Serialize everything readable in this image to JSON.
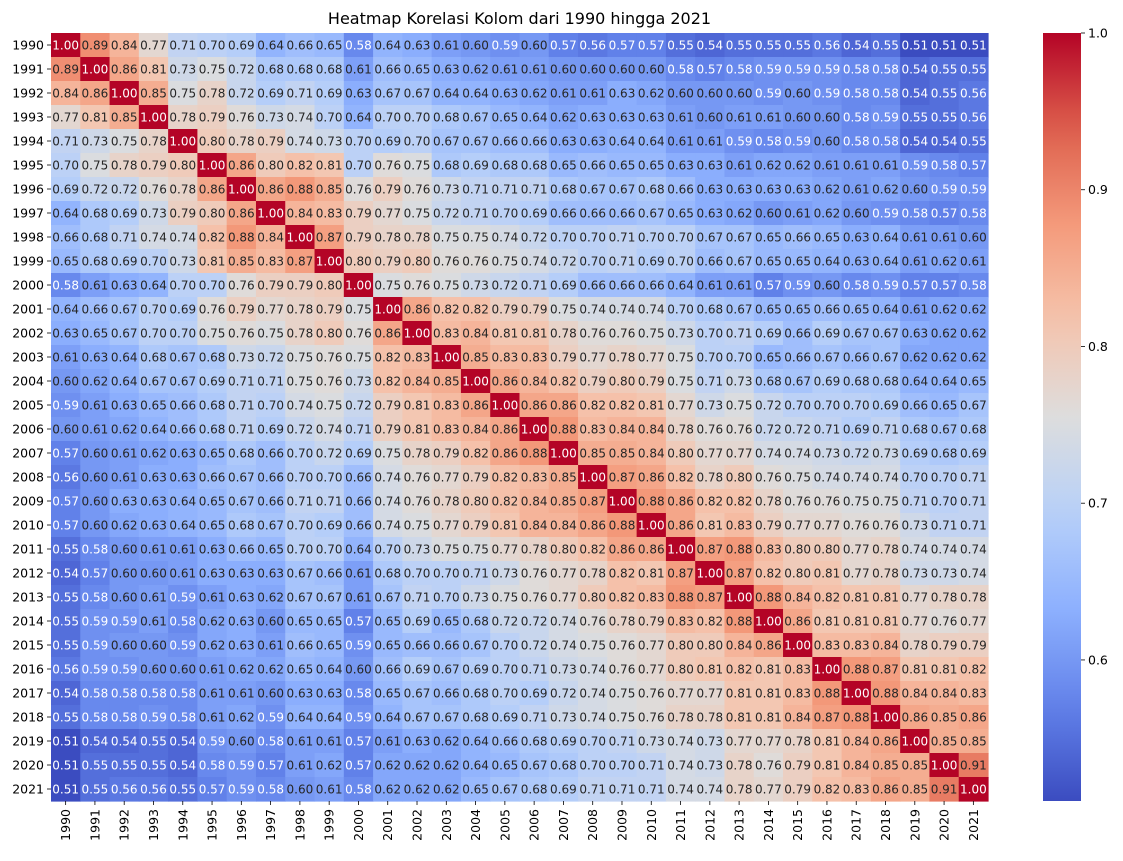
{
  "chart_data": {
    "type": "heatmap",
    "title": "Heatmap Korelasi Kolom dari 1990 hingga 2021",
    "xlabel": "",
    "ylabel": "",
    "categories": [
      "1990",
      "1991",
      "1992",
      "1993",
      "1994",
      "1995",
      "1996",
      "1997",
      "1998",
      "1999",
      "2000",
      "2001",
      "2002",
      "2003",
      "2004",
      "2005",
      "2006",
      "2007",
      "2008",
      "2009",
      "2010",
      "2011",
      "2012",
      "2013",
      "2014",
      "2015",
      "2016",
      "2017",
      "2018",
      "2019",
      "2020",
      "2021"
    ],
    "values": [
      [
        1.0,
        0.89,
        0.84,
        0.77,
        0.71,
        0.7,
        0.69,
        0.64,
        0.66,
        0.65,
        0.58,
        0.64,
        0.63,
        0.61,
        0.6,
        0.59,
        0.6,
        0.57,
        0.56,
        0.57,
        0.57,
        0.55,
        0.54,
        0.55,
        0.55,
        0.55,
        0.56,
        0.54,
        0.55,
        0.51,
        0.51,
        0.51
      ],
      [
        0.89,
        1.0,
        0.86,
        0.81,
        0.73,
        0.75,
        0.72,
        0.68,
        0.68,
        0.68,
        0.61,
        0.66,
        0.65,
        0.63,
        0.62,
        0.61,
        0.61,
        0.6,
        0.6,
        0.6,
        0.6,
        0.58,
        0.57,
        0.58,
        0.59,
        0.59,
        0.59,
        0.58,
        0.58,
        0.54,
        0.55,
        0.55
      ],
      [
        0.84,
        0.86,
        1.0,
        0.85,
        0.75,
        0.78,
        0.72,
        0.69,
        0.71,
        0.69,
        0.63,
        0.67,
        0.67,
        0.64,
        0.64,
        0.63,
        0.62,
        0.61,
        0.61,
        0.63,
        0.62,
        0.6,
        0.6,
        0.6,
        0.59,
        0.6,
        0.59,
        0.58,
        0.58,
        0.54,
        0.55,
        0.56
      ],
      [
        0.77,
        0.81,
        0.85,
        1.0,
        0.78,
        0.79,
        0.76,
        0.73,
        0.74,
        0.7,
        0.64,
        0.7,
        0.7,
        0.68,
        0.67,
        0.65,
        0.64,
        0.62,
        0.63,
        0.63,
        0.63,
        0.61,
        0.6,
        0.61,
        0.61,
        0.6,
        0.6,
        0.58,
        0.59,
        0.55,
        0.55,
        0.56
      ],
      [
        0.71,
        0.73,
        0.75,
        0.78,
        1.0,
        0.8,
        0.78,
        0.79,
        0.74,
        0.73,
        0.7,
        0.69,
        0.7,
        0.67,
        0.67,
        0.66,
        0.66,
        0.63,
        0.63,
        0.64,
        0.64,
        0.61,
        0.61,
        0.59,
        0.58,
        0.59,
        0.6,
        0.58,
        0.58,
        0.54,
        0.54,
        0.55
      ],
      [
        0.7,
        0.75,
        0.78,
        0.79,
        0.8,
        1.0,
        0.86,
        0.8,
        0.82,
        0.81,
        0.7,
        0.76,
        0.75,
        0.68,
        0.69,
        0.68,
        0.68,
        0.65,
        0.66,
        0.65,
        0.65,
        0.63,
        0.63,
        0.61,
        0.62,
        0.62,
        0.61,
        0.61,
        0.61,
        0.59,
        0.58,
        0.57
      ],
      [
        0.69,
        0.72,
        0.72,
        0.76,
        0.78,
        0.86,
        1.0,
        0.86,
        0.88,
        0.85,
        0.76,
        0.79,
        0.76,
        0.73,
        0.71,
        0.71,
        0.71,
        0.68,
        0.67,
        0.67,
        0.68,
        0.66,
        0.63,
        0.63,
        0.63,
        0.63,
        0.62,
        0.61,
        0.62,
        0.6,
        0.59,
        0.59
      ],
      [
        0.64,
        0.68,
        0.69,
        0.73,
        0.79,
        0.8,
        0.86,
        1.0,
        0.84,
        0.83,
        0.79,
        0.77,
        0.75,
        0.72,
        0.71,
        0.7,
        0.69,
        0.66,
        0.66,
        0.66,
        0.67,
        0.65,
        0.63,
        0.62,
        0.6,
        0.61,
        0.62,
        0.6,
        0.59,
        0.58,
        0.57,
        0.58
      ],
      [
        0.66,
        0.68,
        0.71,
        0.74,
        0.74,
        0.82,
        0.88,
        0.84,
        1.0,
        0.87,
        0.79,
        0.78,
        0.78,
        0.75,
        0.75,
        0.74,
        0.72,
        0.7,
        0.7,
        0.71,
        0.7,
        0.7,
        0.67,
        0.67,
        0.65,
        0.66,
        0.65,
        0.63,
        0.64,
        0.61,
        0.61,
        0.6
      ],
      [
        0.65,
        0.68,
        0.69,
        0.7,
        0.73,
        0.81,
        0.85,
        0.83,
        0.87,
        1.0,
        0.8,
        0.79,
        0.8,
        0.76,
        0.76,
        0.75,
        0.74,
        0.72,
        0.7,
        0.71,
        0.69,
        0.7,
        0.66,
        0.67,
        0.65,
        0.65,
        0.64,
        0.63,
        0.64,
        0.61,
        0.62,
        0.61
      ],
      [
        0.58,
        0.61,
        0.63,
        0.64,
        0.7,
        0.7,
        0.76,
        0.79,
        0.79,
        0.8,
        1.0,
        0.75,
        0.76,
        0.75,
        0.73,
        0.72,
        0.71,
        0.69,
        0.66,
        0.66,
        0.66,
        0.64,
        0.61,
        0.61,
        0.57,
        0.59,
        0.6,
        0.58,
        0.59,
        0.57,
        0.57,
        0.58
      ],
      [
        0.64,
        0.66,
        0.67,
        0.7,
        0.69,
        0.76,
        0.79,
        0.77,
        0.78,
        0.79,
        0.75,
        1.0,
        0.86,
        0.82,
        0.82,
        0.79,
        0.79,
        0.75,
        0.74,
        0.74,
        0.74,
        0.7,
        0.68,
        0.67,
        0.65,
        0.65,
        0.66,
        0.65,
        0.64,
        0.61,
        0.62,
        0.62
      ],
      [
        0.63,
        0.65,
        0.67,
        0.7,
        0.7,
        0.75,
        0.76,
        0.75,
        0.78,
        0.8,
        0.76,
        0.86,
        1.0,
        0.83,
        0.84,
        0.81,
        0.81,
        0.78,
        0.76,
        0.76,
        0.75,
        0.73,
        0.7,
        0.71,
        0.69,
        0.66,
        0.69,
        0.67,
        0.67,
        0.63,
        0.62,
        0.62
      ],
      [
        0.61,
        0.63,
        0.64,
        0.68,
        0.67,
        0.68,
        0.73,
        0.72,
        0.75,
        0.76,
        0.75,
        0.82,
        0.83,
        1.0,
        0.85,
        0.83,
        0.83,
        0.79,
        0.77,
        0.78,
        0.77,
        0.75,
        0.7,
        0.7,
        0.65,
        0.66,
        0.67,
        0.66,
        0.67,
        0.62,
        0.62,
        0.62
      ],
      [
        0.6,
        0.62,
        0.64,
        0.67,
        0.67,
        0.69,
        0.71,
        0.71,
        0.75,
        0.76,
        0.73,
        0.82,
        0.84,
        0.85,
        1.0,
        0.86,
        0.84,
        0.82,
        0.79,
        0.8,
        0.79,
        0.75,
        0.71,
        0.73,
        0.68,
        0.67,
        0.69,
        0.68,
        0.68,
        0.64,
        0.64,
        0.65
      ],
      [
        0.59,
        0.61,
        0.63,
        0.65,
        0.66,
        0.68,
        0.71,
        0.7,
        0.74,
        0.75,
        0.72,
        0.79,
        0.81,
        0.83,
        0.86,
        1.0,
        0.86,
        0.86,
        0.82,
        0.82,
        0.81,
        0.77,
        0.73,
        0.75,
        0.72,
        0.7,
        0.7,
        0.7,
        0.69,
        0.66,
        0.65,
        0.67
      ],
      [
        0.6,
        0.61,
        0.62,
        0.64,
        0.66,
        0.68,
        0.71,
        0.69,
        0.72,
        0.74,
        0.71,
        0.79,
        0.81,
        0.83,
        0.84,
        0.86,
        1.0,
        0.88,
        0.83,
        0.84,
        0.84,
        0.78,
        0.76,
        0.76,
        0.72,
        0.72,
        0.71,
        0.69,
        0.71,
        0.68,
        0.67,
        0.68
      ],
      [
        0.57,
        0.6,
        0.61,
        0.62,
        0.63,
        0.65,
        0.68,
        0.66,
        0.7,
        0.72,
        0.69,
        0.75,
        0.78,
        0.79,
        0.82,
        0.86,
        0.88,
        1.0,
        0.85,
        0.85,
        0.84,
        0.8,
        0.77,
        0.77,
        0.74,
        0.74,
        0.73,
        0.72,
        0.73,
        0.69,
        0.68,
        0.69
      ],
      [
        0.56,
        0.6,
        0.61,
        0.63,
        0.63,
        0.66,
        0.67,
        0.66,
        0.7,
        0.7,
        0.66,
        0.74,
        0.76,
        0.77,
        0.79,
        0.82,
        0.83,
        0.85,
        1.0,
        0.87,
        0.86,
        0.82,
        0.78,
        0.8,
        0.76,
        0.75,
        0.74,
        0.74,
        0.74,
        0.7,
        0.7,
        0.71
      ],
      [
        0.57,
        0.6,
        0.63,
        0.63,
        0.64,
        0.65,
        0.67,
        0.66,
        0.71,
        0.71,
        0.66,
        0.74,
        0.76,
        0.78,
        0.8,
        0.82,
        0.84,
        0.85,
        0.87,
        1.0,
        0.88,
        0.86,
        0.82,
        0.82,
        0.78,
        0.76,
        0.76,
        0.75,
        0.75,
        0.71,
        0.7,
        0.71
      ],
      [
        0.57,
        0.6,
        0.62,
        0.63,
        0.64,
        0.65,
        0.68,
        0.67,
        0.7,
        0.69,
        0.66,
        0.74,
        0.75,
        0.77,
        0.79,
        0.81,
        0.84,
        0.84,
        0.86,
        0.88,
        1.0,
        0.86,
        0.81,
        0.83,
        0.79,
        0.77,
        0.77,
        0.76,
        0.76,
        0.73,
        0.71,
        0.71
      ],
      [
        0.55,
        0.58,
        0.6,
        0.61,
        0.61,
        0.63,
        0.66,
        0.65,
        0.7,
        0.7,
        0.64,
        0.7,
        0.73,
        0.75,
        0.75,
        0.77,
        0.78,
        0.8,
        0.82,
        0.86,
        0.86,
        1.0,
        0.87,
        0.88,
        0.83,
        0.8,
        0.8,
        0.77,
        0.78,
        0.74,
        0.74,
        0.74
      ],
      [
        0.54,
        0.57,
        0.6,
        0.6,
        0.61,
        0.63,
        0.63,
        0.63,
        0.67,
        0.66,
        0.61,
        0.68,
        0.7,
        0.7,
        0.71,
        0.73,
        0.76,
        0.77,
        0.78,
        0.82,
        0.81,
        0.87,
        1.0,
        0.87,
        0.82,
        0.8,
        0.81,
        0.77,
        0.78,
        0.73,
        0.73,
        0.74
      ],
      [
        0.55,
        0.58,
        0.6,
        0.61,
        0.59,
        0.61,
        0.63,
        0.62,
        0.67,
        0.67,
        0.61,
        0.67,
        0.71,
        0.7,
        0.73,
        0.75,
        0.76,
        0.77,
        0.8,
        0.82,
        0.83,
        0.88,
        0.87,
        1.0,
        0.88,
        0.84,
        0.82,
        0.81,
        0.81,
        0.77,
        0.78,
        0.78
      ],
      [
        0.55,
        0.59,
        0.59,
        0.61,
        0.58,
        0.62,
        0.63,
        0.6,
        0.65,
        0.65,
        0.57,
        0.65,
        0.69,
        0.65,
        0.68,
        0.72,
        0.72,
        0.74,
        0.76,
        0.78,
        0.79,
        0.83,
        0.82,
        0.88,
        1.0,
        0.86,
        0.81,
        0.81,
        0.81,
        0.77,
        0.76,
        0.77
      ],
      [
        0.55,
        0.59,
        0.6,
        0.6,
        0.59,
        0.62,
        0.63,
        0.61,
        0.66,
        0.65,
        0.59,
        0.65,
        0.66,
        0.66,
        0.67,
        0.7,
        0.72,
        0.74,
        0.75,
        0.76,
        0.77,
        0.8,
        0.8,
        0.84,
        0.86,
        1.0,
        0.83,
        0.83,
        0.84,
        0.78,
        0.79,
        0.79
      ],
      [
        0.56,
        0.59,
        0.59,
        0.6,
        0.6,
        0.61,
        0.62,
        0.62,
        0.65,
        0.64,
        0.6,
        0.66,
        0.69,
        0.67,
        0.69,
        0.7,
        0.71,
        0.73,
        0.74,
        0.76,
        0.77,
        0.8,
        0.81,
        0.82,
        0.81,
        0.83,
        1.0,
        0.88,
        0.87,
        0.81,
        0.81,
        0.82
      ],
      [
        0.54,
        0.58,
        0.58,
        0.58,
        0.58,
        0.61,
        0.61,
        0.6,
        0.63,
        0.63,
        0.58,
        0.65,
        0.67,
        0.66,
        0.68,
        0.7,
        0.69,
        0.72,
        0.74,
        0.75,
        0.76,
        0.77,
        0.77,
        0.81,
        0.81,
        0.83,
        0.88,
        1.0,
        0.88,
        0.84,
        0.84,
        0.83
      ],
      [
        0.55,
        0.58,
        0.58,
        0.59,
        0.58,
        0.61,
        0.62,
        0.59,
        0.64,
        0.64,
        0.59,
        0.64,
        0.67,
        0.67,
        0.68,
        0.69,
        0.71,
        0.73,
        0.74,
        0.75,
        0.76,
        0.78,
        0.78,
        0.81,
        0.81,
        0.84,
        0.87,
        0.88,
        1.0,
        0.86,
        0.85,
        0.86
      ],
      [
        0.51,
        0.54,
        0.54,
        0.55,
        0.54,
        0.59,
        0.6,
        0.58,
        0.61,
        0.61,
        0.57,
        0.61,
        0.63,
        0.62,
        0.64,
        0.66,
        0.68,
        0.69,
        0.7,
        0.71,
        0.73,
        0.74,
        0.73,
        0.77,
        0.77,
        0.78,
        0.81,
        0.84,
        0.86,
        1.0,
        0.85,
        0.85
      ],
      [
        0.51,
        0.55,
        0.55,
        0.55,
        0.54,
        0.58,
        0.59,
        0.57,
        0.61,
        0.62,
        0.57,
        0.62,
        0.62,
        0.62,
        0.64,
        0.65,
        0.67,
        0.68,
        0.7,
        0.7,
        0.71,
        0.74,
        0.73,
        0.78,
        0.76,
        0.79,
        0.81,
        0.84,
        0.85,
        0.85,
        1.0,
        0.91
      ],
      [
        0.51,
        0.55,
        0.56,
        0.56,
        0.55,
        0.57,
        0.59,
        0.58,
        0.6,
        0.61,
        0.58,
        0.62,
        0.62,
        0.62,
        0.65,
        0.67,
        0.68,
        0.69,
        0.71,
        0.71,
        0.71,
        0.74,
        0.74,
        0.78,
        0.77,
        0.79,
        0.82,
        0.83,
        0.86,
        0.85,
        0.91,
        1.0
      ]
    ],
    "color_scale": {
      "name": "coolwarm",
      "vmin": 0.51,
      "vmax": 1.0,
      "ticks": [
        "0.6",
        "0.7",
        "0.8",
        "0.9",
        "1.0"
      ],
      "tick_values": [
        0.6,
        0.7,
        0.8,
        0.9,
        1.0
      ]
    },
    "cell_label_format": "2 decimals, truncated to cell",
    "legend": "colorbar-right",
    "grid": false
  }
}
